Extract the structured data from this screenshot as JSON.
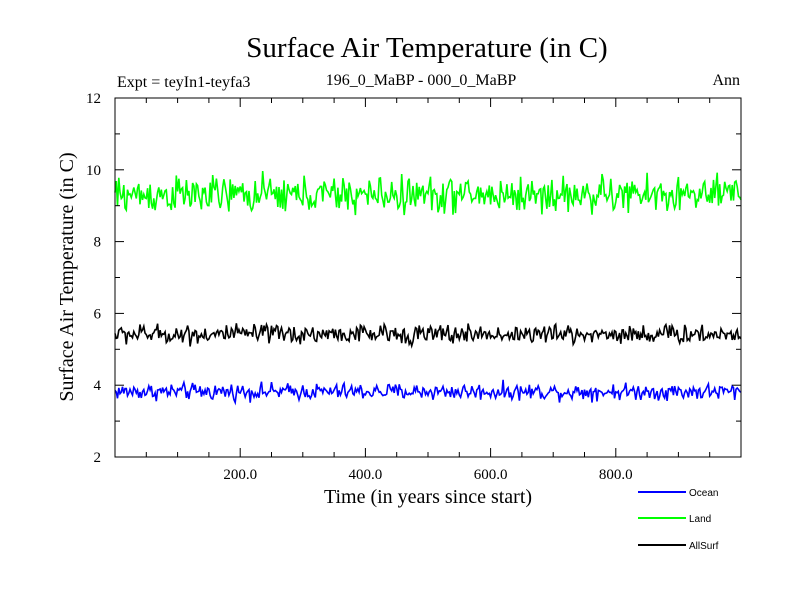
{
  "chart_data": {
    "type": "line",
    "title": "Surface Air Temperature (in C)",
    "expt_label": "Expt = teyIn1-teyfa3",
    "subtitle": "196_0_MaBP - 000_0_MaBP",
    "period_label": "Ann",
    "xlabel": "Time (in years since start)",
    "ylabel": "Surface Air Temperature (in C)",
    "xlim": [
      0,
      1000
    ],
    "ylim": [
      2,
      12
    ],
    "x_ticks": [
      {
        "value": 200,
        "label": "200.0"
      },
      {
        "value": 400,
        "label": "400.0"
      },
      {
        "value": 600,
        "label": "600.0"
      },
      {
        "value": 800,
        "label": "800.0"
      }
    ],
    "y_ticks": [
      {
        "value": 2,
        "label": "2"
      },
      {
        "value": 4,
        "label": "4"
      },
      {
        "value": 6,
        "label": "6"
      },
      {
        "value": 8,
        "label": "8"
      },
      {
        "value": 10,
        "label": "10"
      },
      {
        "value": 12,
        "label": "12"
      }
    ],
    "series": [
      {
        "name": "Ocean",
        "color": "#0000ff",
        "mean": 3.82,
        "amplitude": 0.17,
        "x_start": 0,
        "x_end": 1000,
        "sample_every": 2
      },
      {
        "name": "Land",
        "color": "#00ff00",
        "mean": 9.3,
        "amplitude": 0.38,
        "x_start": 0,
        "x_end": 1000,
        "sample_every": 2
      },
      {
        "name": "AllSurf",
        "color": "#000000",
        "mean": 5.42,
        "amplitude": 0.2,
        "x_start": 0,
        "x_end": 1000,
        "sample_every": 2
      }
    ],
    "legend_position": "bottom-right"
  }
}
